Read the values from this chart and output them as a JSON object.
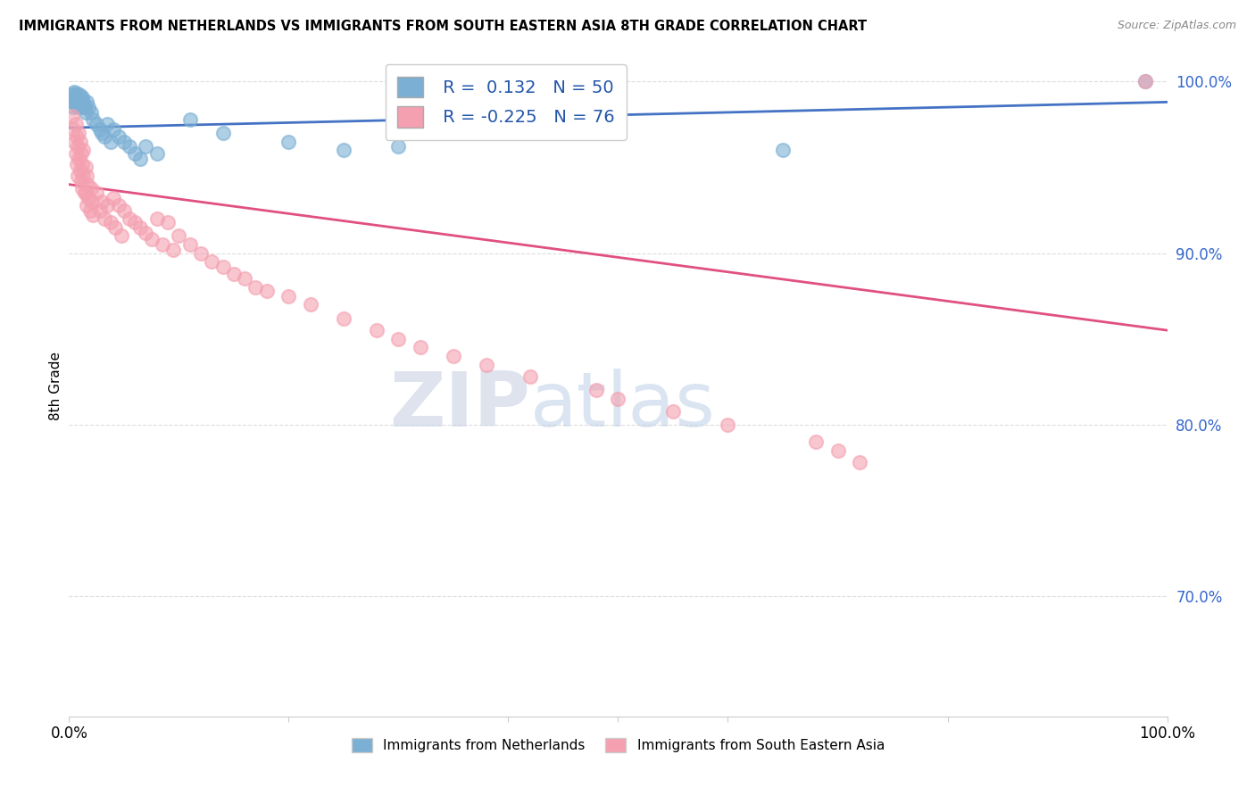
{
  "title": "IMMIGRANTS FROM NETHERLANDS VS IMMIGRANTS FROM SOUTH EASTERN ASIA 8TH GRADE CORRELATION CHART",
  "source": "Source: ZipAtlas.com",
  "ylabel": "8th Grade",
  "xlim": [
    0,
    1
  ],
  "ylim": [
    0.63,
    1.015
  ],
  "yticks": [
    0.7,
    0.8,
    0.9,
    1.0
  ],
  "ytick_labels": [
    "70.0%",
    "80.0%",
    "90.0%",
    "100.0%"
  ],
  "blue_R": 0.132,
  "blue_N": 50,
  "pink_R": -0.225,
  "pink_N": 76,
  "blue_color": "#7BAFD4",
  "pink_color": "#F4A0B0",
  "blue_line_color": "#4472C4",
  "pink_line_color": "#E05080",
  "watermark_zip": "ZIP",
  "watermark_atlas": "atlas",
  "legend_blue": "Immigrants from Netherlands",
  "legend_pink": "Immigrants from South Eastern Asia",
  "blue_x": [
    0.002,
    0.003,
    0.003,
    0.004,
    0.004,
    0.005,
    0.005,
    0.005,
    0.006,
    0.006,
    0.007,
    0.007,
    0.008,
    0.008,
    0.009,
    0.009,
    0.01,
    0.01,
    0.011,
    0.011,
    0.012,
    0.012,
    0.013,
    0.014,
    0.015,
    0.016,
    0.018,
    0.02,
    0.022,
    0.025,
    0.028,
    0.03,
    0.032,
    0.035,
    0.038,
    0.04,
    0.045,
    0.05,
    0.055,
    0.06,
    0.065,
    0.07,
    0.08,
    0.11,
    0.14,
    0.2,
    0.25,
    0.3,
    0.65,
    0.98
  ],
  "blue_y": [
    0.99,
    0.988,
    0.992,
    0.985,
    0.993,
    0.988,
    0.991,
    0.994,
    0.987,
    0.99,
    0.986,
    0.991,
    0.988,
    0.993,
    0.985,
    0.99,
    0.987,
    0.992,
    0.985,
    0.989,
    0.986,
    0.991,
    0.988,
    0.985,
    0.982,
    0.988,
    0.985,
    0.982,
    0.978,
    0.975,
    0.972,
    0.97,
    0.968,
    0.975,
    0.965,
    0.972,
    0.968,
    0.965,
    0.962,
    0.958,
    0.955,
    0.962,
    0.958,
    0.978,
    0.97,
    0.965,
    0.96,
    0.962,
    0.96,
    1.0
  ],
  "pink_x": [
    0.003,
    0.004,
    0.005,
    0.006,
    0.006,
    0.007,
    0.007,
    0.008,
    0.008,
    0.009,
    0.009,
    0.01,
    0.01,
    0.011,
    0.011,
    0.012,
    0.012,
    0.013,
    0.013,
    0.014,
    0.015,
    0.015,
    0.016,
    0.016,
    0.017,
    0.018,
    0.019,
    0.02,
    0.021,
    0.022,
    0.025,
    0.028,
    0.03,
    0.032,
    0.035,
    0.038,
    0.04,
    0.042,
    0.045,
    0.048,
    0.05,
    0.055,
    0.06,
    0.065,
    0.07,
    0.075,
    0.08,
    0.085,
    0.09,
    0.095,
    0.1,
    0.11,
    0.12,
    0.13,
    0.14,
    0.15,
    0.16,
    0.17,
    0.18,
    0.2,
    0.22,
    0.25,
    0.28,
    0.3,
    0.32,
    0.35,
    0.38,
    0.42,
    0.48,
    0.5,
    0.55,
    0.6,
    0.68,
    0.7,
    0.72,
    0.98
  ],
  "pink_y": [
    0.98,
    0.972,
    0.965,
    0.975,
    0.958,
    0.968,
    0.952,
    0.962,
    0.945,
    0.97,
    0.955,
    0.965,
    0.948,
    0.958,
    0.942,
    0.952,
    0.938,
    0.96,
    0.945,
    0.935,
    0.95,
    0.935,
    0.945,
    0.928,
    0.94,
    0.932,
    0.925,
    0.938,
    0.93,
    0.922,
    0.935,
    0.925,
    0.93,
    0.92,
    0.928,
    0.918,
    0.932,
    0.915,
    0.928,
    0.91,
    0.925,
    0.92,
    0.918,
    0.915,
    0.912,
    0.908,
    0.92,
    0.905,
    0.918,
    0.902,
    0.91,
    0.905,
    0.9,
    0.895,
    0.892,
    0.888,
    0.885,
    0.88,
    0.878,
    0.875,
    0.87,
    0.862,
    0.855,
    0.85,
    0.845,
    0.84,
    0.835,
    0.828,
    0.82,
    0.815,
    0.808,
    0.8,
    0.79,
    0.785,
    0.778,
    1.0
  ],
  "blue_line_x0": 0.0,
  "blue_line_y0": 0.973,
  "blue_line_x1": 1.0,
  "blue_line_y1": 0.988,
  "pink_line_x0": 0.0,
  "pink_line_y0": 0.94,
  "pink_line_x1": 1.0,
  "pink_line_y1": 0.855
}
